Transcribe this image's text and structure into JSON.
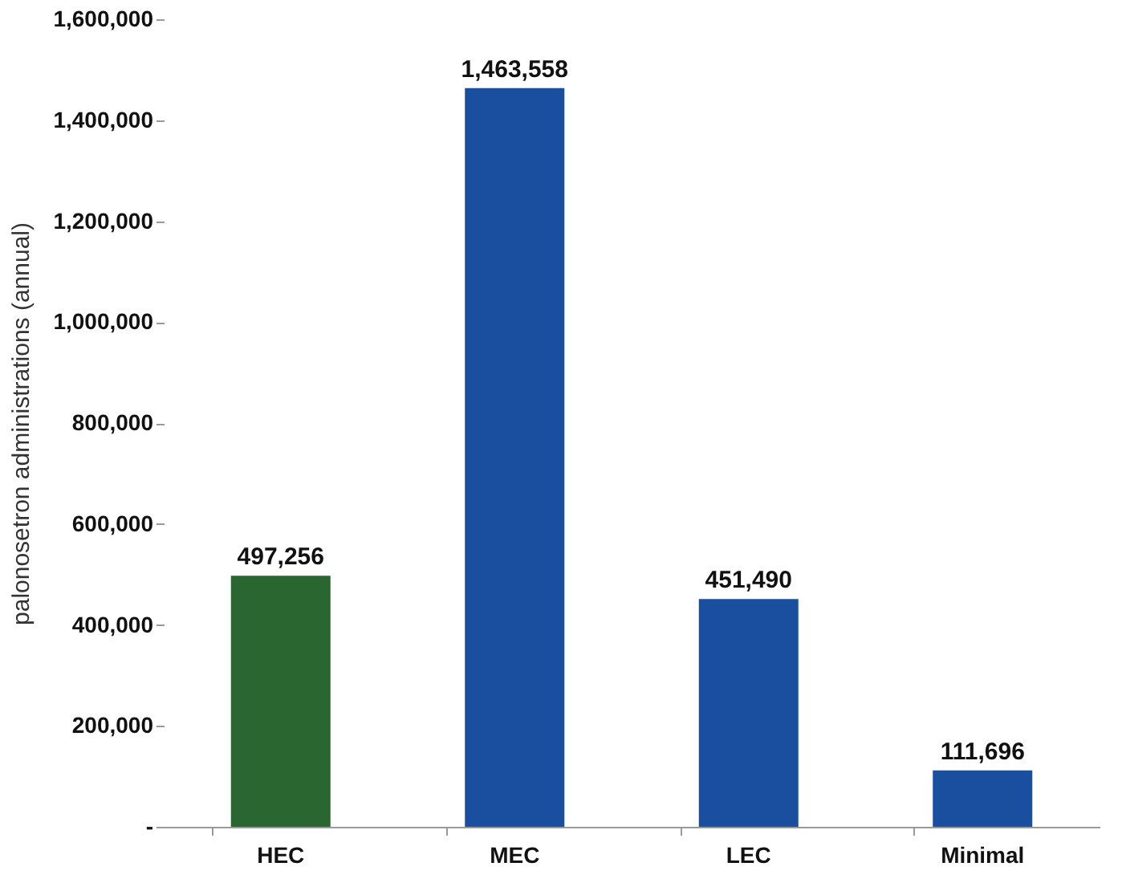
{
  "chart_data": {
    "type": "bar",
    "ylabel": "palonosetron administrations (annual)",
    "categories": [
      "HEC",
      "MEC",
      "LEC",
      "Minimal"
    ],
    "values": [
      497256,
      1463558,
      451490,
      111696
    ],
    "colors": [
      "#2a6630",
      "#1a4fa0",
      "#1a4fa0",
      "#1a4fa0"
    ],
    "ylim": [
      0,
      1600000
    ],
    "yticks": [
      {
        "value": 0,
        "label": "-"
      },
      {
        "value": 200000,
        "label": "200,000"
      },
      {
        "value": 400000,
        "label": "400,000"
      },
      {
        "value": 600000,
        "label": "600,000"
      },
      {
        "value": 800000,
        "label": "800,000"
      },
      {
        "value": 1000000,
        "label": "1,000,000"
      },
      {
        "value": 1200000,
        "label": "1,200,000"
      },
      {
        "value": 1400000,
        "label": "1,400,000"
      },
      {
        "value": 1600000,
        "label": "1,600,000"
      }
    ],
    "value_labels": [
      "497,256",
      "1,463,558",
      "451,490",
      "111,696"
    ],
    "grid": false
  }
}
